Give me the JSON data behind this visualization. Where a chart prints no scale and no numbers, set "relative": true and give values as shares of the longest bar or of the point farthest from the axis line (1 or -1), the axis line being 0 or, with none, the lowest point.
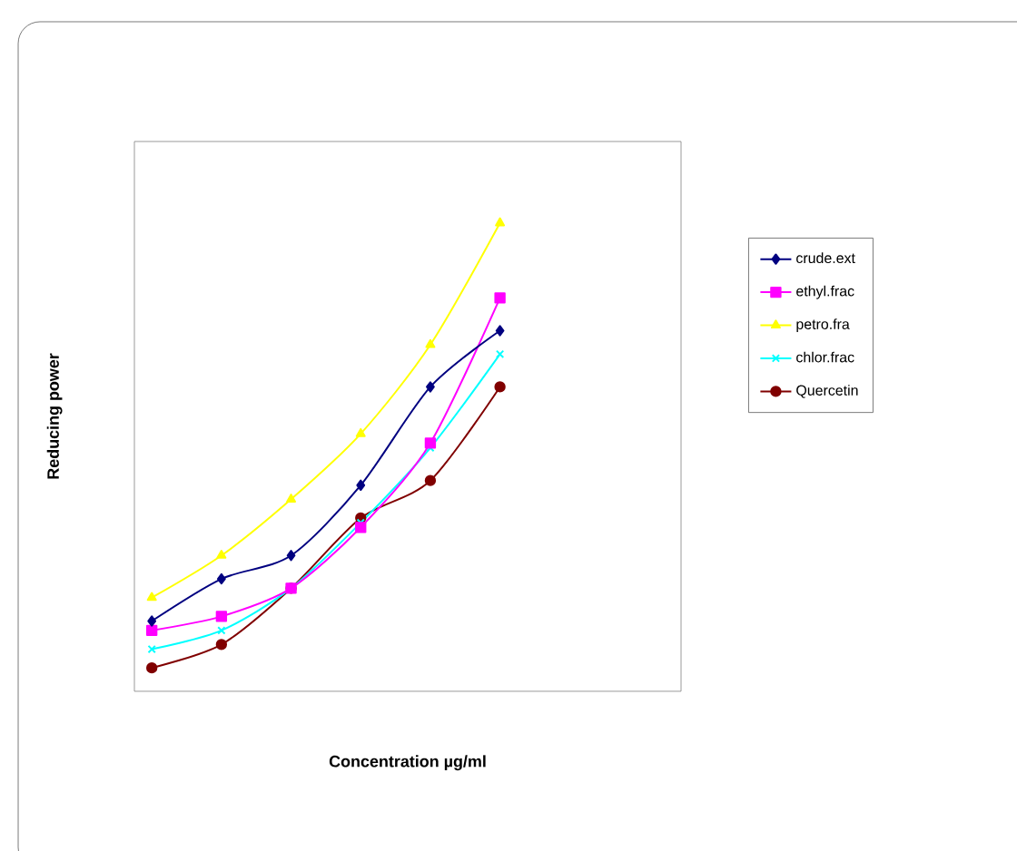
{
  "chart_data": {
    "type": "line",
    "relative": true,
    "xlabel": "Concentration µg/ml",
    "ylabel": "Reducing power",
    "legend": "right",
    "categories": [
      null,
      null,
      null,
      null,
      null,
      null
    ],
    "series": [
      {
        "name": "crude.ext",
        "color": "#000080",
        "marker": "diamond",
        "values": [
          0.15,
          0.24,
          0.29,
          0.44,
          0.65,
          0.77
        ]
      },
      {
        "name": "ethyl.frac",
        "color": "#ff00ff",
        "marker": "square",
        "values": [
          0.13,
          0.16,
          0.22,
          0.35,
          0.53,
          0.84
        ]
      },
      {
        "name": "petro.fra",
        "color": "#ffff00",
        "marker": "triangle",
        "values": [
          0.2,
          0.29,
          0.41,
          0.55,
          0.74,
          1
        ]
      },
      {
        "name": "chlor.frac",
        "color": "#00ffff",
        "marker": "cross",
        "values": [
          0.09,
          0.13,
          0.22,
          0.36,
          0.52,
          0.72
        ]
      },
      {
        "name": "Quercetin",
        "color": "#800000",
        "marker": "circle",
        "values": [
          0.05,
          0.1,
          0.22,
          0.37,
          0.45,
          0.65
        ]
      }
    ]
  }
}
